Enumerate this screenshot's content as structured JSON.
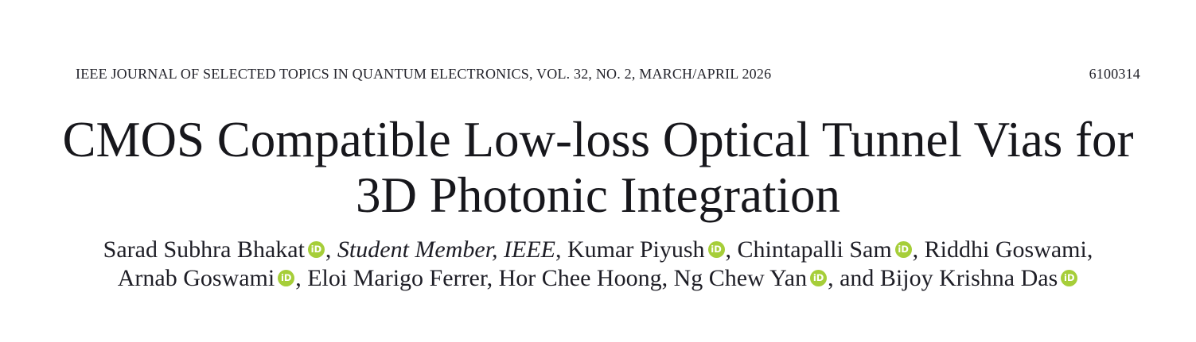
{
  "page": {
    "background": "#ffffff",
    "ink_color": "#1e1e26"
  },
  "running_head": {
    "journal_line": "IEEE JOURNAL OF SELECTED TOPICS IN QUANTUM ELECTRONICS, VOL. 32, NO. 2, MARCH/APRIL 2026",
    "article_number": "6100314"
  },
  "title": {
    "line1": "CMOS Compatible Low-loss Optical Tunnel Vias for",
    "line2": "3D Photonic Integration"
  },
  "byline": {
    "orcid_icon": {
      "name": "orcid-id-icon",
      "glyph": "iD",
      "color": "#A6CE39"
    },
    "lines": [
      [
        {
          "text": "Sarad Subhra Bhakat"
        },
        {
          "icon": "orcid"
        },
        {
          "text": ", "
        },
        {
          "text": "Student Member, IEEE",
          "italic": true
        },
        {
          "text": ", Kumar Piyush"
        },
        {
          "icon": "orcid"
        },
        {
          "text": ", Chintapalli Sam"
        },
        {
          "icon": "orcid"
        },
        {
          "text": ", Riddhi Goswami,"
        }
      ],
      [
        {
          "text": "Arnab Goswami"
        },
        {
          "icon": "orcid"
        },
        {
          "text": ", Eloi Marigo Ferrer, Hor Chee Hoong, Ng Chew Yan"
        },
        {
          "icon": "orcid"
        },
        {
          "text": ", and Bijoy Krishna Das"
        },
        {
          "icon": "orcid"
        }
      ]
    ]
  }
}
